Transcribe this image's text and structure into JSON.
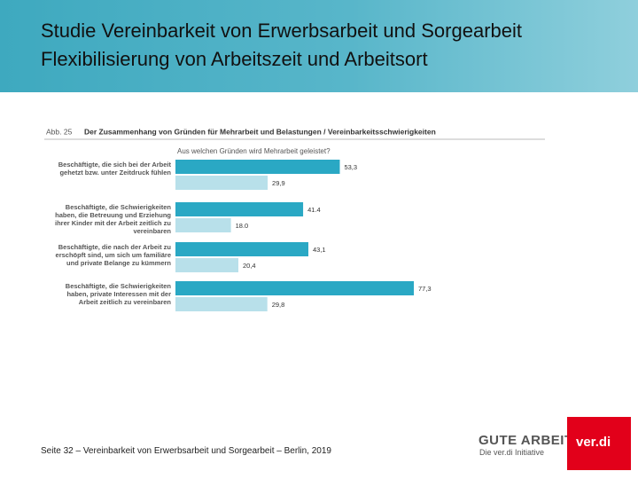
{
  "header": {
    "title": "Studie Vereinbarkeit von Erwerbsarbeit und Sorgearbeit",
    "subtitle": "Flexibilisierung von Arbeitszeit und Arbeitsort"
  },
  "chart_data": {
    "type": "bar",
    "orientation": "horizontal",
    "figure_label": "Abb. 25",
    "title": "Der Zusammenhang von Gründen für Mehrarbeit und Belastungen / Vereinbarkeitsschwierigkeiten",
    "subtitle": "Aus welchen Gründen wird Mehrarbeit geleistet?",
    "categories": [
      "Beschäftigte, die sich bei der Arbeit gehetzt bzw. unter Zeitdruck fühlen",
      "Beschäftigte, die Schwierigkeiten haben, die Betreuung und Erziehung ihrer Kinder mit der Arbeit zeitlich zu vereinbaren",
      "Beschäftigte, die nach der Arbeit zu erschöpft sind, um sich um familiäre und private Belange zu kümmern",
      "Beschäftigte, die Schwierigkeiten haben, private Interessen mit der Arbeit zeitlich zu vereinbaren"
    ],
    "series": [
      {
        "color": "#2aa8c4",
        "values": [
          53.3,
          41.4,
          43.1,
          77.3
        ],
        "value_labels": [
          "53,3",
          "41.4",
          "43,1",
          "77,3"
        ]
      },
      {
        "color": "#b8e0ea",
        "values": [
          29.9,
          18.0,
          20.4,
          29.8
        ],
        "value_labels": [
          "29,9",
          "18.0",
          "20,4",
          "29,8"
        ]
      }
    ]
  },
  "footer": {
    "text": "Seite 32 – Vereinbarkeit von Erwerbsarbeit und Sorgearbeit – Berlin, 2019",
    "logo_main": "GUTE ARBEIT",
    "logo_sub": "Die ver.di Initiative",
    "logo_verdi": "ver.di"
  }
}
